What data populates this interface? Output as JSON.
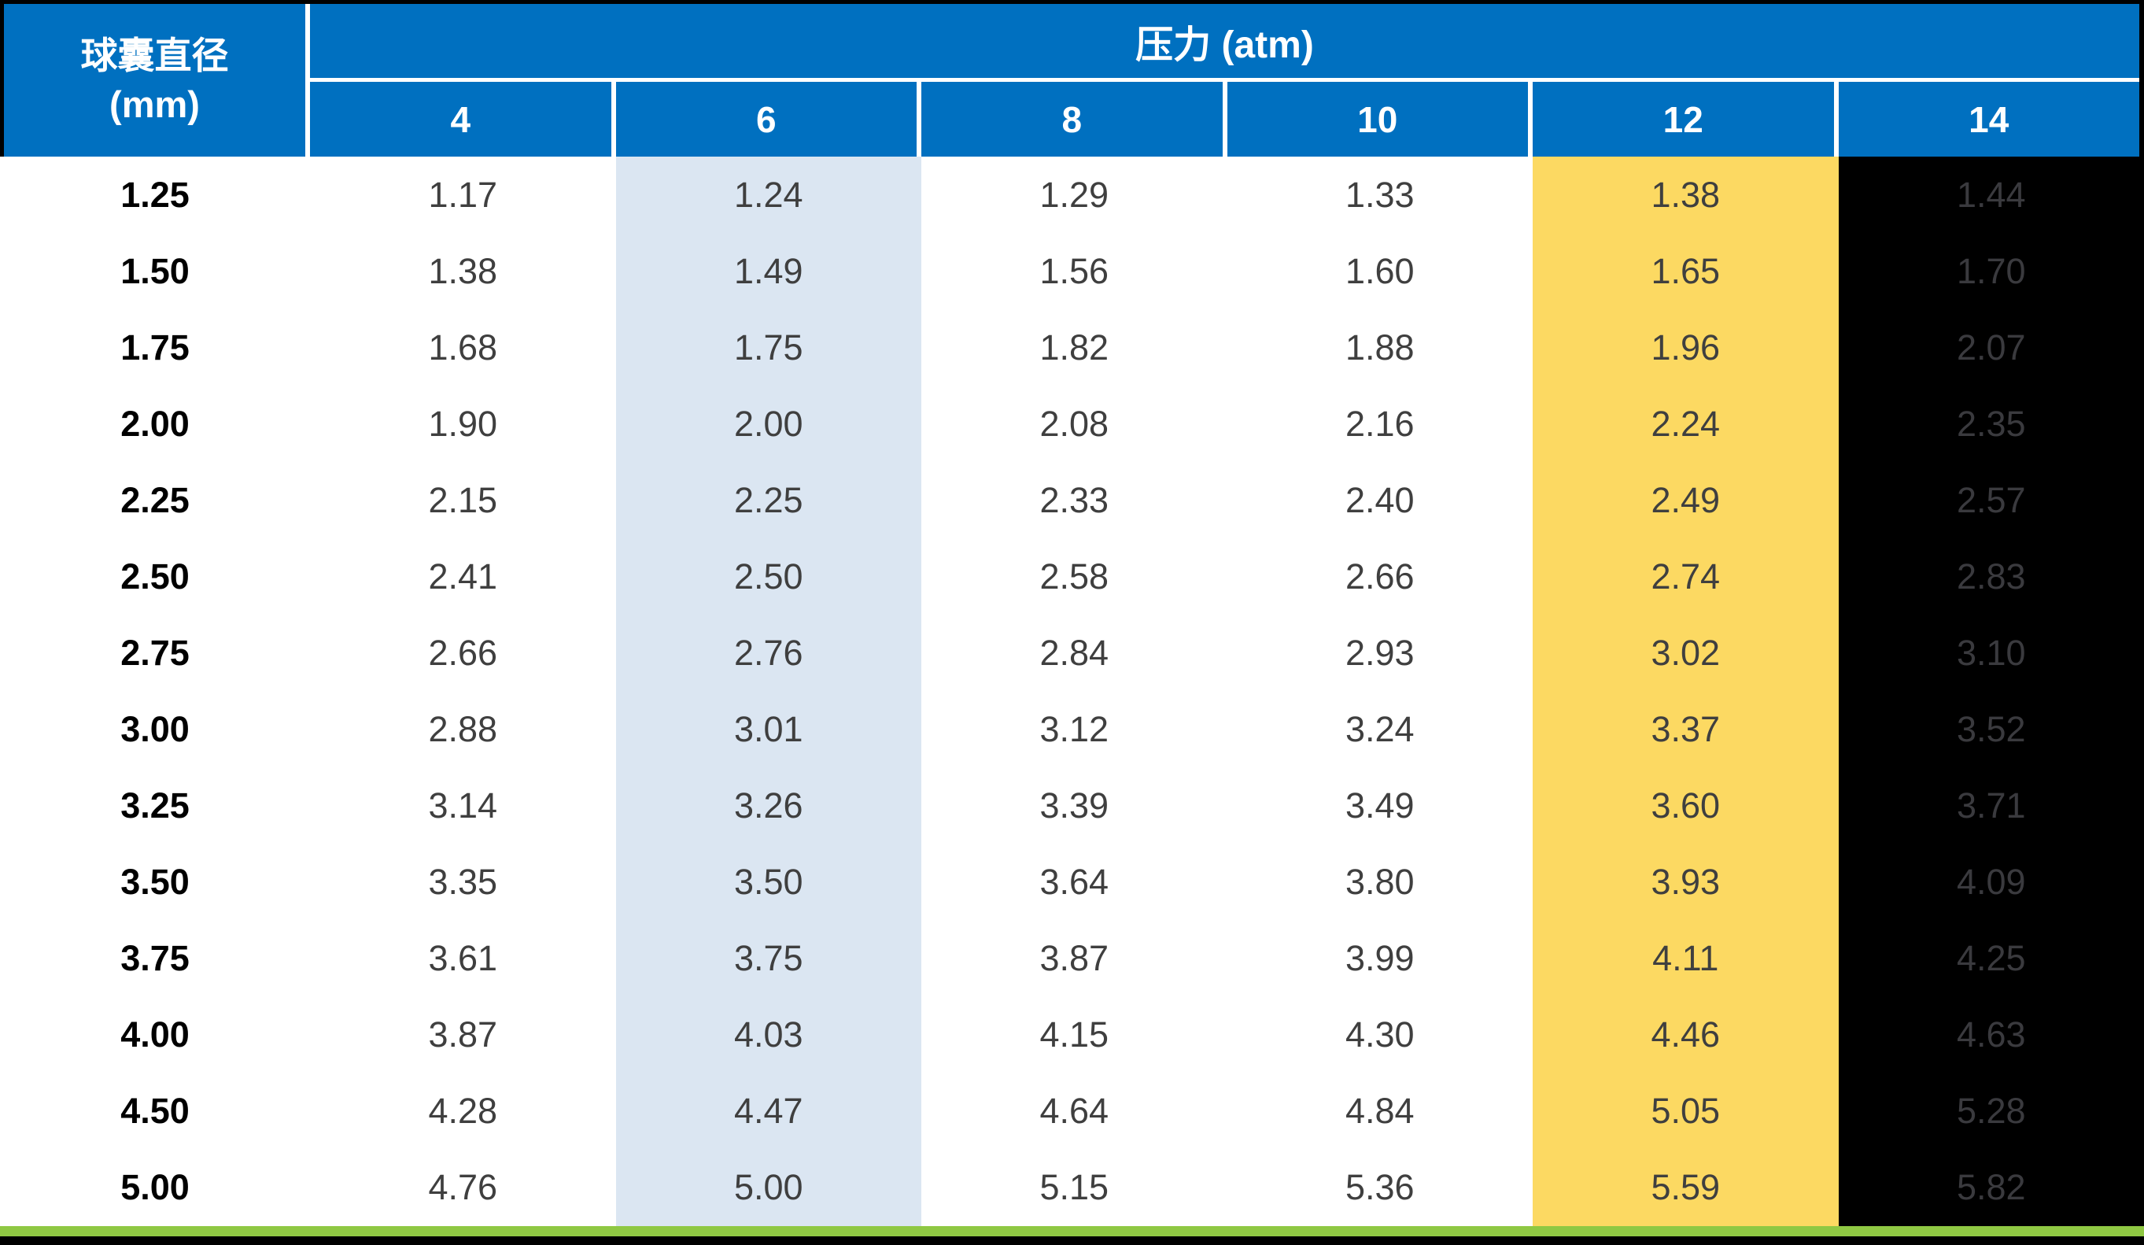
{
  "table": {
    "row_header": {
      "line1": "球囊直径",
      "line2": "(mm)"
    },
    "pressure_header": "压力 (atm)",
    "pressure_columns": [
      "4",
      "6",
      "8",
      "10",
      "12",
      "14"
    ],
    "rows": [
      {
        "diameter": "1.25",
        "values": [
          "1.17",
          "1.24",
          "1.29",
          "1.33",
          "1.38",
          "1.44"
        ]
      },
      {
        "diameter": "1.50",
        "values": [
          "1.38",
          "1.49",
          "1.56",
          "1.60",
          "1.65",
          "1.70"
        ]
      },
      {
        "diameter": "1.75",
        "values": [
          "1.68",
          "1.75",
          "1.82",
          "1.88",
          "1.96",
          "2.07"
        ]
      },
      {
        "diameter": "2.00",
        "values": [
          "1.90",
          "2.00",
          "2.08",
          "2.16",
          "2.24",
          "2.35"
        ]
      },
      {
        "diameter": "2.25",
        "values": [
          "2.15",
          "2.25",
          "2.33",
          "2.40",
          "2.49",
          "2.57"
        ]
      },
      {
        "diameter": "2.50",
        "values": [
          "2.41",
          "2.50",
          "2.58",
          "2.66",
          "2.74",
          "2.83"
        ]
      },
      {
        "diameter": "2.75",
        "values": [
          "2.66",
          "2.76",
          "2.84",
          "2.93",
          "3.02",
          "3.10"
        ]
      },
      {
        "diameter": "3.00",
        "values": [
          "2.88",
          "3.01",
          "3.12",
          "3.24",
          "3.37",
          "3.52"
        ]
      },
      {
        "diameter": "3.25",
        "values": [
          "3.14",
          "3.26",
          "3.39",
          "3.49",
          "3.60",
          "3.71"
        ]
      },
      {
        "diameter": "3.50",
        "values": [
          "3.35",
          "3.50",
          "3.64",
          "3.80",
          "3.93",
          "4.09"
        ]
      },
      {
        "diameter": "3.75",
        "values": [
          "3.61",
          "3.75",
          "3.87",
          "3.99",
          "4.11",
          "4.25"
        ]
      },
      {
        "diameter": "4.00",
        "values": [
          "3.87",
          "4.03",
          "4.15",
          "4.30",
          "4.46",
          "4.63"
        ]
      },
      {
        "diameter": "4.50",
        "values": [
          "4.28",
          "4.47",
          "4.64",
          "4.84",
          "5.05",
          "5.28"
        ]
      },
      {
        "diameter": "5.00",
        "values": [
          "4.76",
          "5.00",
          "5.15",
          "5.36",
          "5.59",
          "5.82"
        ]
      }
    ]
  },
  "colors": {
    "header_blue": "#0070c0",
    "nominal_column_lightblue": "#dbe6f2",
    "column_12_gold": "#fcd962",
    "column_14_black": "#000000",
    "column_14_text": "#3a3a3e",
    "data_text": "#3f3f3f",
    "green_bar": "#8fc843",
    "frame_black": "#000000",
    "header_text": "#ffffff"
  },
  "chart_data": {
    "type": "table",
    "title": "球囊直径 (mm) × 压力 (atm) 顺应性表",
    "column_header": "压力 (atm)",
    "row_header": "球囊直径 (mm)",
    "pressures_atm": [
      4,
      6,
      8,
      10,
      12,
      14
    ],
    "diameters_mm": [
      1.25,
      1.5,
      1.75,
      2.0,
      2.25,
      2.5,
      2.75,
      3.0,
      3.25,
      3.5,
      3.75,
      4.0,
      4.5,
      5.0
    ],
    "values": [
      [
        1.17,
        1.24,
        1.29,
        1.33,
        1.38,
        1.44
      ],
      [
        1.38,
        1.49,
        1.56,
        1.6,
        1.65,
        1.7
      ],
      [
        1.68,
        1.75,
        1.82,
        1.88,
        1.96,
        2.07
      ],
      [
        1.9,
        2.0,
        2.08,
        2.16,
        2.24,
        2.35
      ],
      [
        2.15,
        2.25,
        2.33,
        2.4,
        2.49,
        2.57
      ],
      [
        2.41,
        2.5,
        2.58,
        2.66,
        2.74,
        2.83
      ],
      [
        2.66,
        2.76,
        2.84,
        2.93,
        3.02,
        3.1
      ],
      [
        2.88,
        3.01,
        3.12,
        3.24,
        3.37,
        3.52
      ],
      [
        3.14,
        3.26,
        3.39,
        3.49,
        3.6,
        3.71
      ],
      [
        3.35,
        3.5,
        3.64,
        3.8,
        3.93,
        4.09
      ],
      [
        3.61,
        3.75,
        3.87,
        3.99,
        4.11,
        4.25
      ],
      [
        3.87,
        4.03,
        4.15,
        4.3,
        4.46,
        4.63
      ],
      [
        4.28,
        4.47,
        4.64,
        4.84,
        5.05,
        5.28
      ],
      [
        4.76,
        5.0,
        5.15,
        5.36,
        5.59,
        5.82
      ]
    ],
    "highlighted_columns": {
      "6_atm": "light-blue (nominal pressure column)",
      "12_atm": "gold",
      "14_atm": "black background with dark gray text"
    },
    "layout": "grid table, no inner row lines, white separator lines between header cells, green bar and black strip at bottom"
  }
}
